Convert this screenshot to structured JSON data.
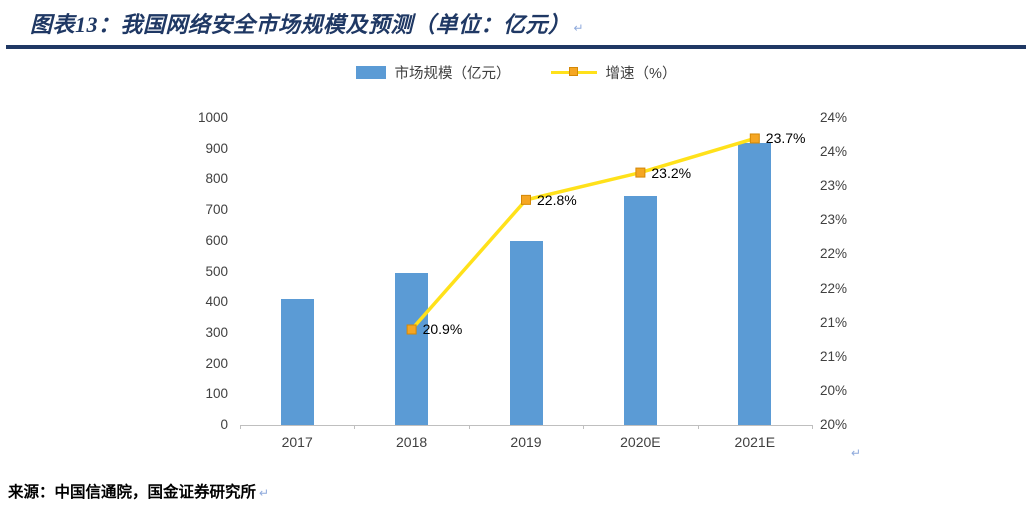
{
  "header": {
    "title": "图表13：我国网络安全市场规模及预测（单位：亿元）"
  },
  "legend": {
    "items": [
      {
        "key": "market-size",
        "swatch": "bar",
        "label": "市场规模（亿元）"
      },
      {
        "key": "growth-rate",
        "swatch": "line",
        "label": "增速（%）"
      }
    ]
  },
  "chart_data": {
    "type": "combo",
    "title": "图表13：我国网络安全市场规模及预测（单位：亿元）",
    "categories": [
      "2017",
      "2018",
      "2019",
      "2020E",
      "2021E"
    ],
    "series": [
      {
        "name": "市场规模（亿元）",
        "type": "bar",
        "axis": "left",
        "values": [
          410,
          495,
          600,
          745,
          920
        ]
      },
      {
        "name": "增速（%）",
        "type": "line",
        "axis": "right",
        "values": [
          null,
          20.9,
          22.8,
          23.2,
          23.7
        ],
        "point_labels": [
          null,
          "20.9%",
          "22.8%",
          "23.2%",
          "23.7%"
        ]
      }
    ],
    "left_axis": {
      "min": 0,
      "max": 1000,
      "step": 100,
      "tick_labels": [
        "0",
        "100",
        "200",
        "300",
        "400",
        "500",
        "600",
        "700",
        "800",
        "900",
        "1000"
      ]
    },
    "right_axis": {
      "min": 19.5,
      "max": 24,
      "step": 0.5,
      "tick_labels": [
        "20%",
        "20%",
        "21%",
        "21%",
        "22%",
        "22%",
        "23%",
        "23%",
        "24%",
        "24%"
      ]
    },
    "grid": false,
    "legend_position": "top",
    "colors": {
      "bar": "#5B9BD5",
      "line": "#FFE11A",
      "marker": "#F5A623",
      "marker_border": "#D48806"
    }
  },
  "theme": {
    "title_color": "#1F3864",
    "rule_color": "#1F3864",
    "axis_text_color": "#404040",
    "point_label_color": "#000000"
  },
  "footer": {
    "source": "来源：中国信通院，国金证券研究所"
  },
  "marks": {
    "paragraph": "↵"
  }
}
